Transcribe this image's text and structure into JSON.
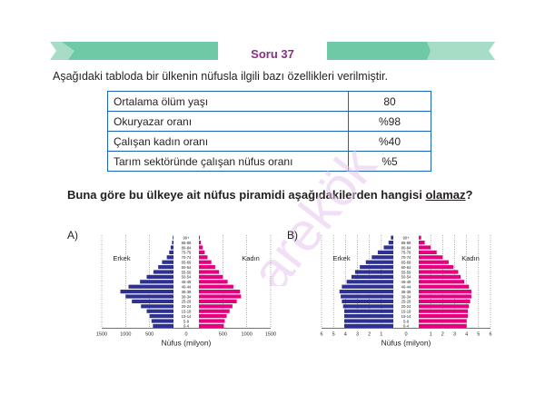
{
  "header": {
    "title": "Soru 37"
  },
  "intro": "Aşağıdaki tabloda bir ülkenin nüfusla ilgili bazı özellikleri verilmiştir.",
  "table": [
    {
      "label": "Ortalama ölüm yaşı",
      "value": "80"
    },
    {
      "label": "Okuryazar oranı",
      "value": "%98"
    },
    {
      "label": "Çalışan kadın oranı",
      "value": "%40"
    },
    {
      "label": "Tarım sektöründe çalışan nüfus oranı",
      "value": "%5"
    }
  ],
  "question": {
    "text": "Buna göre bu ülkeye ait nüfus piramidi aşağıdakilerden hangisi ",
    "emphasis": "olamaz",
    "end": "?"
  },
  "watermark": "arekök",
  "colors": {
    "male": "#2e3192",
    "female": "#e6007e",
    "banner": "#6fc8a6",
    "title": "#8a2f87",
    "border": "#1b63b5"
  },
  "chart_data": [
    {
      "type": "bar",
      "option": "A)",
      "categories": [
        "0-4",
        "5-9",
        "10-14",
        "15-19",
        "20-24",
        "25-29",
        "30-34",
        "35-39",
        "40-44",
        "45-49",
        "50-54",
        "55-59",
        "60-64",
        "65-69",
        "70-74",
        "75-79",
        "80-84",
        "85-89",
        "90+"
      ],
      "series": [
        {
          "name": "Erkek",
          "values": [
            430,
            460,
            500,
            560,
            680,
            870,
            1000,
            1110,
            940,
            700,
            560,
            420,
            320,
            240,
            140,
            90,
            60,
            30,
            15
          ]
        },
        {
          "name": "Kadın",
          "values": [
            520,
            540,
            580,
            640,
            700,
            790,
            880,
            860,
            720,
            600,
            500,
            420,
            340,
            260,
            180,
            120,
            80,
            40,
            20
          ]
        }
      ],
      "xticks": [
        "1500",
        "1000",
        "500",
        "0",
        "500",
        "1000",
        "1500"
      ],
      "xlim": [
        -1500,
        1500
      ],
      "xlabel": "Nüfus (milyon)",
      "left_label": "Erkek",
      "right_label": "Kadın"
    },
    {
      "type": "bar",
      "option": "B)",
      "categories": [
        "0-4",
        "5-9",
        "10-14",
        "15-19",
        "20-24",
        "25-29",
        "30-34",
        "35-39",
        "40-44",
        "45-49",
        "50-54",
        "55-59",
        "60-64",
        "65-69",
        "70-74",
        "75-79",
        "80-84",
        "85-89",
        "90+"
      ],
      "series": [
        {
          "name": "Erkek",
          "values": [
            4.1,
            4.1,
            4.1,
            4.1,
            4.2,
            4.3,
            4.4,
            4.5,
            4.3,
            3.9,
            3.5,
            3.2,
            2.8,
            2.3,
            1.8,
            1.3,
            0.8,
            0.4,
            0.2
          ]
        },
        {
          "name": "Kadın",
          "values": [
            4.0,
            4.0,
            4.1,
            4.1,
            4.2,
            4.3,
            4.4,
            4.4,
            4.2,
            3.8,
            3.5,
            3.3,
            2.9,
            2.5,
            2.0,
            1.5,
            1.0,
            0.5,
            0.2
          ]
        }
      ],
      "xticks": [
        "6",
        "5",
        "4",
        "3",
        "2",
        "1",
        "0",
        "1",
        "2",
        "3",
        "4",
        "5",
        "6"
      ],
      "xlim": [
        -6,
        6
      ],
      "xlabel": "Nüfus (milyon)",
      "left_label": "Erkek",
      "right_label": "Kadın"
    }
  ]
}
